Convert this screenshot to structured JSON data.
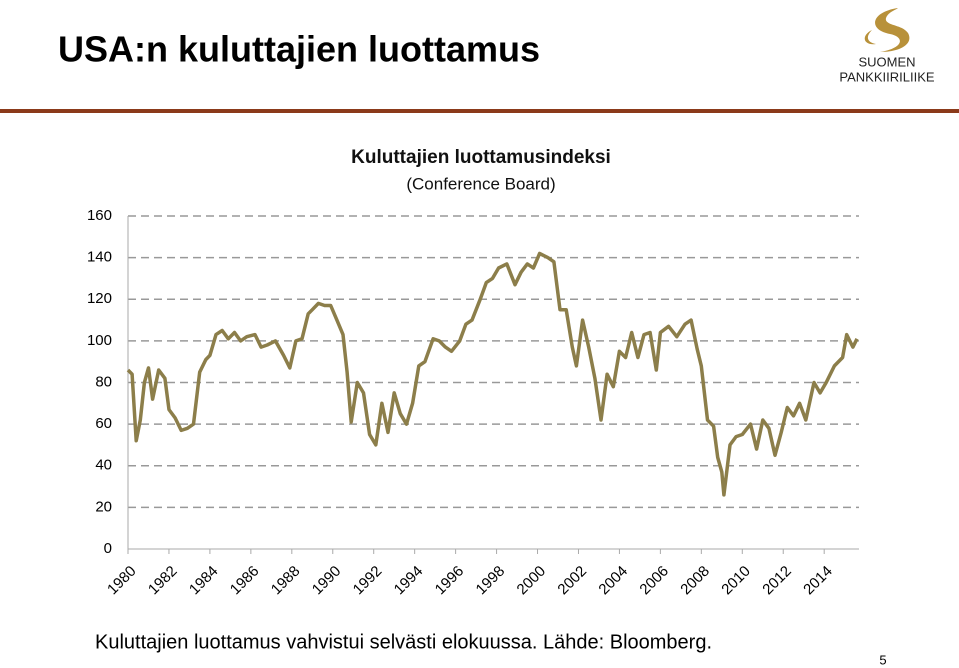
{
  "header": {
    "title": "USA:n kuluttajien luottamus",
    "logo_line1": "SUOMEN",
    "logo_line2": "PANKKIIRILIIKE"
  },
  "caption": "Kuluttajien luottamus vahvistui selvästi elokuussa. Lähde: Bloomberg.",
  "page_number": "5",
  "chart_data": {
    "type": "line",
    "title": "Kuluttajien luottamusindeksi",
    "subtitle": "(Conference Board)",
    "color": "#8c7e4a",
    "grid": true,
    "x": [
      1980,
      1980.2,
      1980.4,
      1980.6,
      1980.8,
      1981,
      1981.2,
      1981.5,
      1981.8,
      1982,
      1982.3,
      1982.6,
      1982.9,
      1983.2,
      1983.5,
      1983.8,
      1984,
      1984.3,
      1984.6,
      1984.9,
      1985.2,
      1985.5,
      1985.8,
      1986.2,
      1986.5,
      1986.8,
      1987.2,
      1987.6,
      1987.9,
      1988.2,
      1988.5,
      1988.8,
      1989,
      1989.3,
      1989.6,
      1989.9,
      1990.2,
      1990.5,
      1990.7,
      1990.9,
      1991.2,
      1991.5,
      1991.8,
      1992.1,
      1992.4,
      1992.7,
      1993,
      1993.3,
      1993.6,
      1993.9,
      1994.2,
      1994.5,
      1994.9,
      1995.2,
      1995.5,
      1995.8,
      1996.2,
      1996.5,
      1996.8,
      1997.2,
      1997.5,
      1997.8,
      1998.1,
      1998.5,
      1998.9,
      1999.2,
      1999.5,
      1999.8,
      2000.1,
      2000.5,
      2000.8,
      2001.1,
      2001.4,
      2001.7,
      2001.9,
      2002.2,
      2002.5,
      2002.8,
      2003.1,
      2003.4,
      2003.7,
      2004,
      2004.3,
      2004.6,
      2004.9,
      2005.2,
      2005.5,
      2005.8,
      2006,
      2006.4,
      2006.8,
      2007.2,
      2007.5,
      2007.8,
      2008,
      2008.3,
      2008.6,
      2008.8,
      2009,
      2009.1,
      2009.4,
      2009.7,
      2010,
      2010.4,
      2010.7,
      2011,
      2011.3,
      2011.6,
      2011.9,
      2012.2,
      2012.5,
      2012.8,
      2013.1,
      2013.5,
      2013.8,
      2014.1,
      2014.5,
      2014.9,
      2015.1,
      2015.4,
      2015.6
    ],
    "values": [
      86,
      84,
      52,
      62,
      80,
      87,
      72,
      86,
      82,
      67,
      63,
      57,
      58,
      60,
      85,
      91,
      93,
      103,
      105,
      101,
      104,
      100,
      102,
      103,
      97,
      98,
      100,
      93,
      87,
      100,
      101,
      113,
      115,
      118,
      117,
      117,
      110,
      103,
      85,
      61,
      80,
      75,
      55,
      50,
      70,
      56,
      75,
      65,
      60,
      70,
      88,
      90,
      101,
      100,
      97,
      95,
      100,
      108,
      110,
      120,
      128,
      130,
      135,
      137,
      127,
      133,
      137,
      135,
      142,
      140,
      138,
      115,
      115,
      97,
      88,
      110,
      97,
      82,
      62,
      84,
      78,
      95,
      92,
      104,
      92,
      103,
      104,
      86,
      104,
      107,
      102,
      108,
      110,
      96,
      88,
      62,
      59,
      44,
      37,
      26,
      50,
      54,
      55,
      60,
      48,
      62,
      58,
      45,
      56,
      68,
      64,
      70,
      62,
      80,
      75,
      80,
      88,
      92,
      103,
      97,
      101
    ],
    "xlim": [
      1980,
      2015.7
    ],
    "xticks": [
      1980,
      1982,
      1984,
      1986,
      1988,
      1990,
      1992,
      1994,
      1996,
      1998,
      2000,
      2002,
      2004,
      2006,
      2008,
      2010,
      2012,
      2014
    ],
    "ylim": [
      0,
      160
    ],
    "yticks": [
      0,
      20,
      40,
      60,
      80,
      100,
      120,
      140,
      160
    ]
  }
}
